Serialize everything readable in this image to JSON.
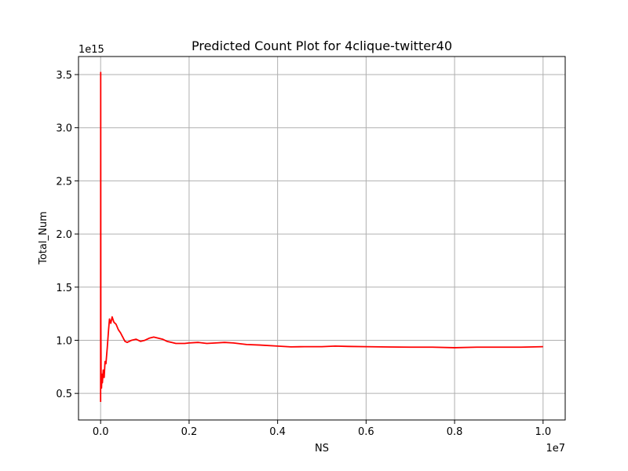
{
  "chart_data": {
    "type": "line",
    "title": "Predicted Count Plot for 4clique-twitter40",
    "xlabel": "NS",
    "ylabel": "Total_Num",
    "x_offset_text": "1e7",
    "y_offset_text": "1e15",
    "x_scale": 10000000,
    "y_scale": 1000000000000000,
    "xlim": [
      -0.05,
      1.05
    ],
    "ylim": [
      0.25,
      3.67
    ],
    "x_ticks": [
      0.0,
      0.2,
      0.4,
      0.6,
      0.8,
      1.0
    ],
    "x_tick_labels": [
      "0.0",
      "0.2",
      "0.4",
      "0.6",
      "0.8",
      "1.0"
    ],
    "y_ticks": [
      0.5,
      1.0,
      1.5,
      2.0,
      2.5,
      3.0,
      3.5
    ],
    "y_tick_labels": [
      "0.5",
      "1.0",
      "1.5",
      "2.0",
      "2.5",
      "3.0",
      "3.5"
    ],
    "grid": true,
    "series": [
      {
        "color": "#ff0000",
        "x": [
          0.0,
          0.0002,
          0.0005,
          0.001,
          0.002,
          0.003,
          0.004,
          0.006,
          0.008,
          0.01,
          0.012,
          0.015,
          0.018,
          0.02,
          0.023,
          0.026,
          0.03,
          0.035,
          0.04,
          0.045,
          0.05,
          0.055,
          0.06,
          0.07,
          0.08,
          0.09,
          0.1,
          0.11,
          0.12,
          0.13,
          0.14,
          0.15,
          0.16,
          0.17,
          0.18,
          0.19,
          0.2,
          0.22,
          0.24,
          0.26,
          0.28,
          0.3,
          0.33,
          0.36,
          0.4,
          0.43,
          0.46,
          0.5,
          0.53,
          0.56,
          0.6,
          0.65,
          0.7,
          0.75,
          0.8,
          0.85,
          0.9,
          0.95,
          1.0
        ],
        "y": [
          0.42,
          3.52,
          1.2,
          0.7,
          0.55,
          0.68,
          0.6,
          0.72,
          0.65,
          0.8,
          0.78,
          0.93,
          1.1,
          1.2,
          1.16,
          1.22,
          1.17,
          1.15,
          1.1,
          1.07,
          1.03,
          0.99,
          0.98,
          1.0,
          1.01,
          0.99,
          1.0,
          1.02,
          1.03,
          1.02,
          1.01,
          0.99,
          0.98,
          0.97,
          0.97,
          0.97,
          0.975,
          0.98,
          0.97,
          0.975,
          0.98,
          0.975,
          0.96,
          0.955,
          0.945,
          0.938,
          0.94,
          0.94,
          0.945,
          0.942,
          0.94,
          0.937,
          0.935,
          0.935,
          0.93,
          0.935,
          0.935,
          0.935,
          0.94
        ]
      }
    ]
  }
}
